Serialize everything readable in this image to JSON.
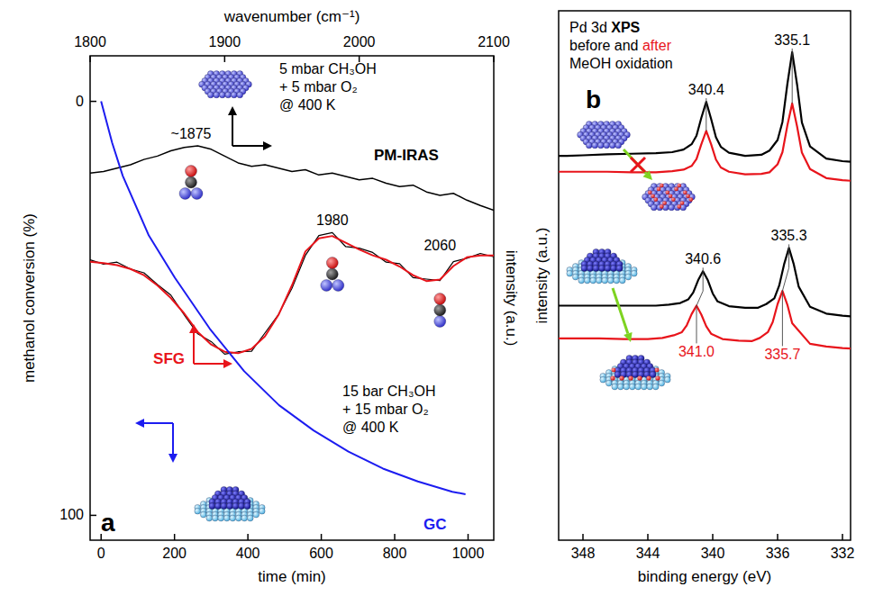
{
  "chart_data": [
    {
      "type": "line",
      "panel_label": "a",
      "x_label": "time (min)",
      "xlim": [
        -30,
        1070
      ],
      "xticks": [
        0,
        200,
        400,
        600,
        800,
        1000
      ],
      "x2_label": "wavenumber (cm⁻¹)",
      "x2lim": [
        1800,
        2100
      ],
      "x2ticks": [
        1800,
        1900,
        2000,
        2100
      ],
      "y_label": "methanol conversion (%)",
      "ylim": [
        106,
        -11
      ],
      "yticks": [
        0,
        100
      ],
      "y2_label": "intensity (a.u.)",
      "y2lim": [
        0,
        100
      ],
      "series": [
        {
          "name": "PM-IRAS",
          "type": "line",
          "axis": "y2",
          "color": "#000000",
          "x": [
            1800,
            1810,
            1820,
            1830,
            1840,
            1850,
            1860,
            1870,
            1880,
            1890,
            1900,
            1910,
            1920,
            1930,
            1940,
            1950,
            1960,
            1970,
            1980,
            1990,
            2000,
            2010,
            2020,
            2030,
            2040,
            2050,
            2060,
            2070,
            2080,
            2090,
            2100
          ],
          "values": [
            75.8,
            76.1,
            76.8,
            77.5,
            78.6,
            79.3,
            80.4,
            81.1,
            81.4,
            80.7,
            79.3,
            77.9,
            77.2,
            77.5,
            76.8,
            76.1,
            76.5,
            75.4,
            75.8,
            75.1,
            74.4,
            74.7,
            73.7,
            73.0,
            73.3,
            71.9,
            71.2,
            71.6,
            70.2,
            69.1,
            68.1
          ],
          "annotation": [
            "5 mbar CH₃OH",
            "+ 5 mbar O₂",
            "@ 400 K"
          ],
          "peak_labels": [
            {
              "value": 1875,
              "label": "~1875"
            }
          ]
        },
        {
          "name": "SFG",
          "type": "line",
          "axis": "y2",
          "color": "#e8141b",
          "x": [
            1800,
            1810,
            1820,
            1830,
            1840,
            1850,
            1860,
            1870,
            1880,
            1890,
            1900,
            1910,
            1920,
            1930,
            1940,
            1950,
            1960,
            1970,
            1980,
            1990,
            2000,
            2010,
            2020,
            2030,
            2040,
            2050,
            2060,
            2070,
            2080,
            2090,
            2100
          ],
          "values": [
            57.9,
            57.0,
            57.4,
            56.0,
            55.2,
            52.8,
            50.6,
            46.5,
            42.6,
            41.0,
            38.4,
            38.9,
            39.0,
            42.8,
            46.6,
            52.0,
            58.8,
            62.9,
            63.5,
            60.6,
            60.3,
            59.4,
            57.4,
            57.1,
            54.2,
            53.9,
            53.6,
            57.5,
            58.2,
            59.2,
            58.5
          ],
          "fit": [
            57.5,
            57.2,
            56.8,
            56.0,
            54.7,
            52.6,
            50.0,
            46.8,
            43.0,
            40.4,
            38.9,
            38.6,
            39.5,
            42.1,
            46.5,
            52.6,
            59.6,
            62.3,
            62.8,
            61.4,
            60.0,
            58.8,
            57.9,
            56.5,
            54.7,
            53.5,
            53.8,
            56.6,
            58.4,
            58.8,
            58.8
          ],
          "annotation": [
            "15 bar CH₃OH",
            "+ 15 mbar O₂",
            "@ 400 K"
          ],
          "peak_labels": [
            {
              "value": 1980,
              "label": "1980"
            },
            {
              "value": 2060,
              "label": "2060"
            }
          ]
        },
        {
          "name": "GC",
          "type": "line",
          "axis": "y",
          "color": "#1c1cf0",
          "x": [
            0,
            15,
            30,
            59,
            130,
            201,
            296,
            390,
            485,
            579,
            674,
            768,
            863,
            957,
            993
          ],
          "values": [
            0,
            5,
            10,
            18,
            32.4,
            42.6,
            54.9,
            65.2,
            73.4,
            79.5,
            84.6,
            88.7,
            91.8,
            94.3,
            94.9
          ]
        }
      ]
    },
    {
      "type": "line",
      "panel_label": "b",
      "title": [
        "Pd 3d XPS",
        "before and after",
        "MeOH oxidation"
      ],
      "x_label": "binding energy (eV)",
      "xlim": [
        349.5,
        331.5
      ],
      "xticks": [
        348,
        344,
        340,
        336,
        332
      ],
      "y_label": "intensity (a.u.)",
      "ylim": [
        0,
        100
      ],
      "tick_labels": "x",
      "series": [
        {
          "name": "before",
          "color": "#000000",
          "x": [
            331.5,
            332,
            333,
            334,
            334.5,
            334.8,
            335.1,
            335.4,
            335.7,
            336,
            336.5,
            337,
            338,
            339,
            339.5,
            339.8,
            340.1,
            340.4,
            340.7,
            341,
            341.3,
            341.8,
            342.5,
            343.5,
            345,
            346.5,
            348,
            349,
            349.5
          ],
          "values": [
            71.5,
            71.6,
            72.1,
            74.4,
            78.9,
            86.1,
            92.2,
            86.1,
            79.0,
            75.6,
            73.6,
            72.8,
            72.6,
            73.2,
            74.3,
            76.1,
            79.6,
            82.8,
            79.8,
            76.4,
            74.8,
            73.8,
            73.3,
            73.1,
            73.0,
            72.9,
            72.7,
            72.6,
            72.6
          ],
          "peak_labels": [
            {
              "value": 340.4,
              "label": "340.4"
            },
            {
              "value": 335.1,
              "label": "335.1"
            }
          ]
        },
        {
          "name": "after",
          "color": "#e8141b",
          "x": [
            331.5,
            332,
            333,
            334,
            334.5,
            334.8,
            335.1,
            335.4,
            335.7,
            336,
            336.5,
            337,
            338,
            339,
            339.5,
            339.8,
            340.1,
            340.4,
            340.7,
            341,
            341.3,
            341.8,
            342.5,
            343.5,
            345,
            346.5,
            348,
            349,
            349.5
          ],
          "values": [
            67.9,
            68.0,
            68.4,
            70.1,
            73.2,
            78.2,
            82.5,
            78.3,
            73.3,
            71.0,
            69.5,
            69.2,
            69.1,
            69.6,
            70.4,
            71.9,
            74.8,
            77.3,
            74.8,
            72.0,
            70.7,
            70.0,
            69.7,
            69.5,
            69.5,
            69.6,
            69.6,
            69.6,
            69.6
          ]
        },
        {
          "name": "before",
          "color": "#000000",
          "x": [
            331.5,
            332,
            333,
            334,
            334.7,
            335,
            335.3,
            335.6,
            335.9,
            336.2,
            336.7,
            337.2,
            338,
            339,
            339.7,
            340,
            340.3,
            340.6,
            340.9,
            341.2,
            341.5,
            342,
            342.7,
            343.5,
            345,
            346.5,
            348,
            349,
            349.5
          ],
          "values": [
            42.3,
            42.4,
            42.8,
            44.1,
            47.9,
            52.1,
            55.2,
            52.1,
            48.1,
            45.7,
            44.6,
            43.9,
            43.9,
            44.2,
            45.1,
            46.6,
            49.1,
            50.8,
            49.1,
            46.8,
            45.5,
            44.8,
            44.5,
            44.3,
            44.3,
            44.3,
            44.3,
            44.3,
            44.3
          ],
          "peak_labels": [
            {
              "value": 340.6,
              "label": "340.6"
            },
            {
              "value": 335.3,
              "label": "335.3"
            }
          ]
        },
        {
          "name": "after",
          "color": "#e8141b",
          "x": [
            331.5,
            332,
            333,
            334,
            335.1,
            335.4,
            335.7,
            336,
            336.3,
            336.6,
            337.1,
            337.6,
            338.4,
            339.4,
            340.1,
            340.4,
            340.7,
            341,
            341.3,
            341.6,
            341.9,
            342.4,
            343.1,
            344,
            345.5,
            347,
            348,
            349,
            349.5
          ],
          "values": [
            36.2,
            36.3,
            36.6,
            37.1,
            41.0,
            44.5,
            47.1,
            44.6,
            41.2,
            39.3,
            38.2,
            37.6,
            37.7,
            38.0,
            39.0,
            40.4,
            42.6,
            44.3,
            42.7,
            40.6,
            39.3,
            38.7,
            38.2,
            38.0,
            38.0,
            38.1,
            38.1,
            38.1,
            38.1
          ],
          "peak_labels": [
            {
              "value": 341,
              "label": "341.0"
            },
            {
              "value": 335.7,
              "label": "335.7"
            }
          ]
        }
      ]
    }
  ]
}
